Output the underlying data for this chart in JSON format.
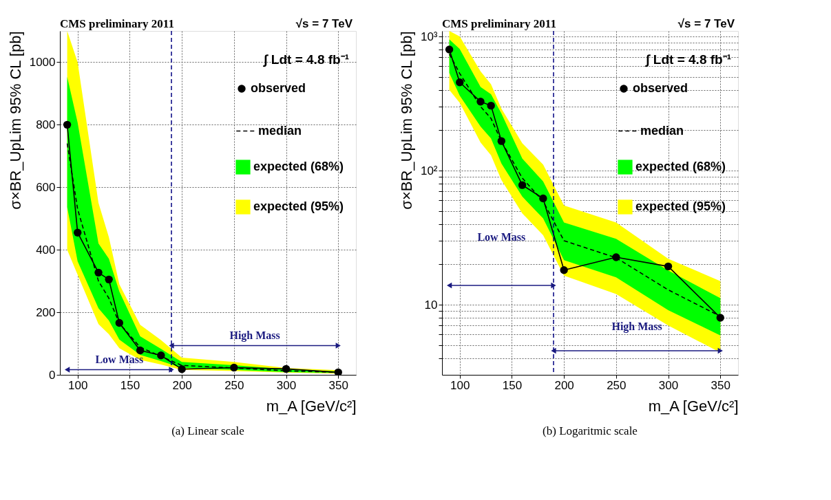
{
  "chart_data": [
    {
      "type": "line",
      "title": "(a) Linear scale",
      "xlabel": "m_A [GeV/c²]",
      "ylabel": "σ×BR_UpLim 95% CL [pb]",
      "x": [
        90,
        100,
        120,
        130,
        140,
        160,
        180,
        200,
        250,
        300,
        350
      ],
      "xlim": [
        83,
        367
      ],
      "xticks": [
        100,
        150,
        200,
        250,
        300,
        350
      ],
      "ylim": [
        0,
        1100
      ],
      "yticks": [
        0,
        200,
        400,
        600,
        800,
        1000
      ],
      "grid": true,
      "legend": "top right",
      "series": [
        {
          "name": "expected (95%)",
          "color": "#ffff00",
          "values": [
            null,
            null,
            null,
            null,
            null,
            null,
            null,
            null,
            null,
            null,
            null
          ],
          "lower": [
            400,
            320,
            162,
            130,
            85,
            48,
            33,
            16,
            12,
            7,
            4
          ],
          "upper": [
            1100,
            1000,
            550,
            440,
            290,
            160,
            111,
            55,
            41,
            22,
            15
          ]
        },
        {
          "name": "expected (68%)",
          "color": "#00ff00",
          "values": [
            null,
            null,
            null,
            null,
            null,
            null,
            null,
            null,
            null,
            null,
            null
          ],
          "lower": [
            536,
            363,
            213,
            174,
            113,
            64,
            44,
            22,
            16,
            9,
            6
          ],
          "upper": [
            953,
            807,
            420,
            371,
            267,
            123,
            83,
            41,
            31,
            18,
            11
          ]
        },
        {
          "name": "median",
          "color": "#000000",
          "line_style": "dashed",
          "values": [
            740,
            530,
            300,
            245,
            165,
            88,
            59,
            30,
            22,
            13,
            8
          ]
        },
        {
          "name": "observed",
          "color": "#000000",
          "marker": "circle",
          "values": [
            800,
            455,
            327,
            305,
            166,
            78,
            62,
            18,
            23,
            19,
            8
          ]
        }
      ],
      "ref_lines": [
        {
          "axis": "x",
          "value": 190,
          "color": "#000080",
          "line_style": "dashed"
        }
      ],
      "annotations": [
        "CMS preliminary 2011",
        "√s = 7 TeV",
        "∫ Ldt = 4.8 fb⁻¹",
        "Low Mass",
        "High Mass"
      ]
    },
    {
      "type": "line",
      "title": "(b) Logaritmic scale",
      "xlabel": "m_A [GeV/c²]",
      "ylabel": "σ×BR_UpLim 95% CL [pb]",
      "x": [
        90,
        100,
        120,
        130,
        140,
        160,
        180,
        200,
        250,
        300,
        350
      ],
      "xlim": [
        83,
        367
      ],
      "xticks": [
        100,
        150,
        200,
        250,
        300,
        350
      ],
      "log": "y",
      "ylim": [
        3,
        1100
      ],
      "yticks": [
        {
          "value": 4,
          "label": null
        },
        {
          "value": 5,
          "label": null
        },
        {
          "value": 6,
          "label": null
        },
        {
          "value": 7,
          "label": null
        },
        {
          "value": 8,
          "label": null
        },
        {
          "value": 9,
          "label": null
        },
        10,
        {
          "value": 20,
          "label": null
        },
        {
          "value": 30,
          "label": null
        },
        {
          "value": 40,
          "label": null
        },
        {
          "value": 50,
          "label": null
        },
        {
          "value": 60,
          "label": null
        },
        {
          "value": 70,
          "label": null
        },
        {
          "value": 80,
          "label": null
        },
        {
          "value": 90,
          "label": null
        },
        {
          "value": 100,
          "label": "10²"
        },
        {
          "value": 200,
          "label": null
        },
        {
          "value": 300,
          "label": null
        },
        {
          "value": 400,
          "label": null
        },
        {
          "value": 500,
          "label": null
        },
        {
          "value": 600,
          "label": null
        },
        {
          "value": 700,
          "label": null
        },
        {
          "value": 800,
          "label": null
        },
        {
          "value": 900,
          "label": null
        },
        {
          "value": 1000,
          "label": "10³"
        }
      ],
      "grid": true,
      "legend": "top right",
      "series": [
        {
          "name": "expected (95%)",
          "color": "#ffff00",
          "values": [
            null,
            null,
            null,
            null,
            null,
            null,
            null,
            null,
            null,
            null,
            null
          ],
          "lower": [
            400,
            320,
            162,
            130,
            85,
            48,
            33,
            16.5,
            12,
            7,
            4.4
          ],
          "upper": [
            1100,
            1000,
            550,
            440,
            290,
            160,
            111,
            55,
            41,
            22,
            15
          ]
        },
        {
          "name": "expected (68%)",
          "color": "#00ff00",
          "values": [
            null,
            null,
            null,
            null,
            null,
            null,
            null,
            null,
            null,
            null,
            null
          ],
          "lower": [
            536,
            363,
            213,
            174,
            113,
            64,
            44,
            21.5,
            16,
            9.1,
            5.9
          ],
          "upper": [
            953,
            807,
            420,
            371,
            267,
            123,
            83,
            41,
            31,
            18,
            11.2
          ]
        },
        {
          "name": "median",
          "color": "#000000",
          "line_style": "dashed",
          "values": [
            740,
            530,
            300,
            245,
            165,
            88,
            59,
            30,
            22.4,
            12.9,
            8.2
          ]
        },
        {
          "name": "observed",
          "color": "#000000",
          "marker": "circle",
          "values": [
            800,
            455,
            327,
            305,
            166,
            78,
            62,
            18.1,
            22.6,
            19.3,
            8
          ]
        }
      ],
      "ref_lines": [
        {
          "axis": "x",
          "value": 190,
          "color": "#000080",
          "line_style": "dashed"
        }
      ],
      "annotations": [
        "CMS preliminary 2011",
        "√s = 7 TeV",
        "∫ Ldt = 4.8 fb⁻¹",
        "Low Mass",
        "High Mass"
      ]
    }
  ]
}
